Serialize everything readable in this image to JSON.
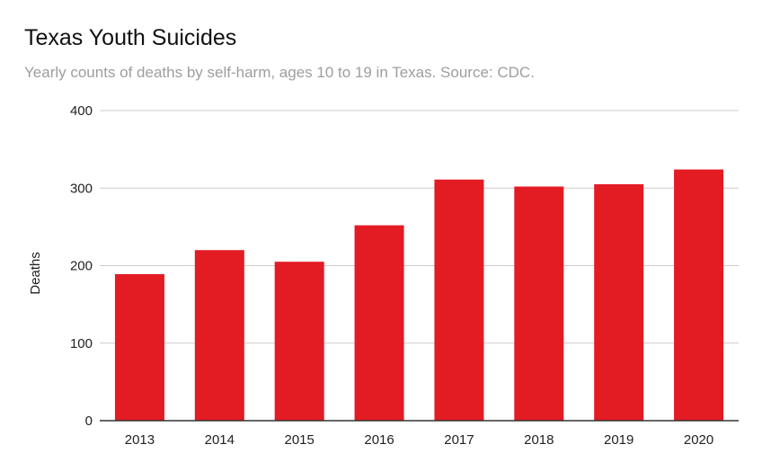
{
  "chart_data": {
    "type": "bar",
    "title": "Texas Youth Suicides",
    "subtitle": "Yearly counts of deaths by self-harm, ages 10 to 19 in Texas. Source: CDC.",
    "xlabel": "",
    "ylabel": "Deaths",
    "categories": [
      "2013",
      "2014",
      "2015",
      "2016",
      "2017",
      "2018",
      "2019",
      "2020"
    ],
    "values": [
      189,
      220,
      205,
      252,
      311,
      302,
      305,
      324
    ],
    "ylim": [
      0,
      400
    ],
    "yticks": [
      0,
      100,
      200,
      300,
      400
    ],
    "bar_color": "#e31b23",
    "grid": true,
    "legend": "none"
  }
}
